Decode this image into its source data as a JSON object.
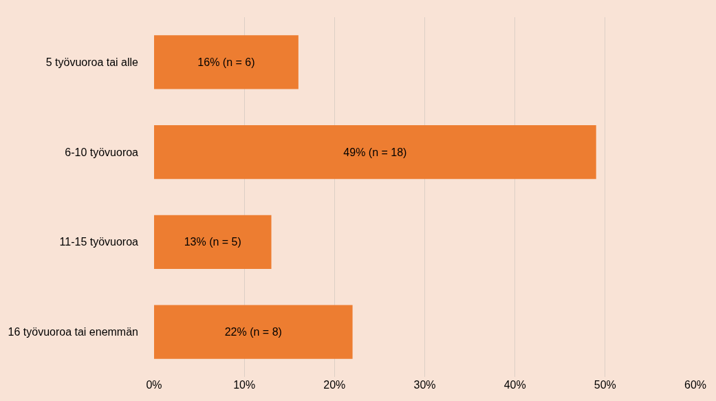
{
  "chart_data": {
    "type": "bar",
    "orientation": "horizontal",
    "categories": [
      "5 työvuoroa tai alle",
      "6-10 työvuoroa",
      "11-15 työvuoroa",
      "16 työvuoroa tai enemmän"
    ],
    "values": [
      16,
      49,
      13,
      22
    ],
    "value_labels": [
      "16% (n = 6)",
      "49% (n = 18)",
      "13% (n = 5)",
      "22% (n = 8)"
    ],
    "color": "#ed7d31",
    "xlim": [
      0,
      60
    ],
    "xticks": [
      {
        "value": 0,
        "label": "0%"
      },
      {
        "value": 10,
        "label": "10%"
      },
      {
        "value": 20,
        "label": "20%"
      },
      {
        "value": 30,
        "label": "30%"
      },
      {
        "value": 40,
        "label": "40%"
      },
      {
        "value": 50,
        "label": "50%"
      },
      {
        "value": 60,
        "label": "60%"
      }
    ],
    "grid": "x"
  }
}
